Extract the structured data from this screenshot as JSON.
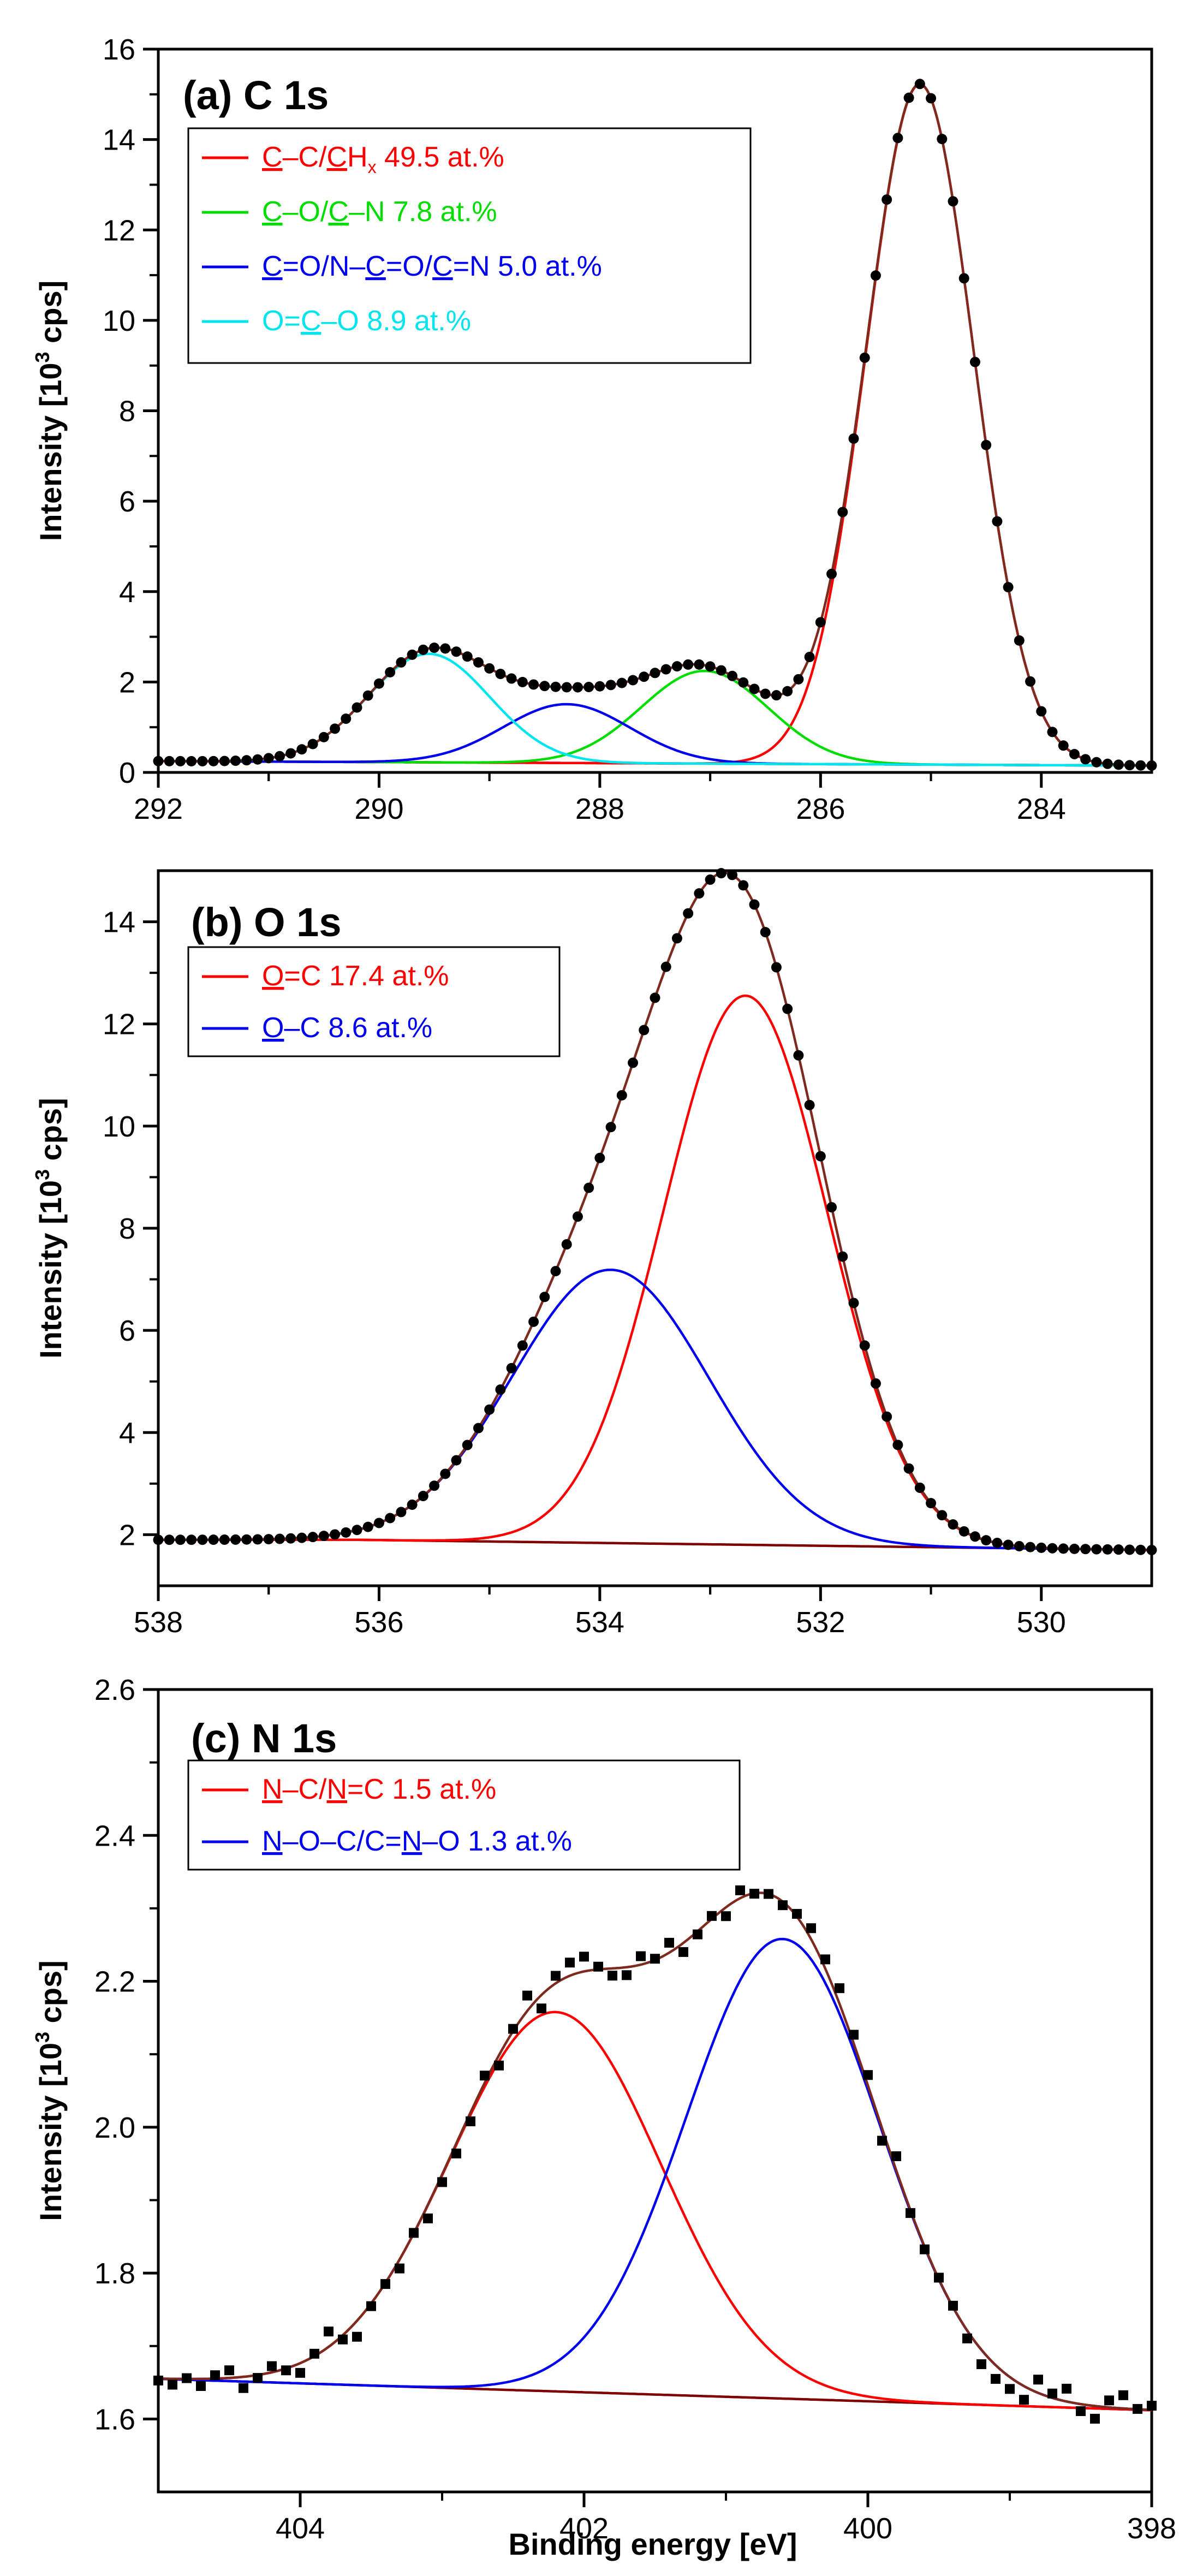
{
  "figure_xlabel": "Binding energy [eV]",
  "colors": {
    "axis": "#000000",
    "envelope": "#7f2a1e",
    "baseline": "#7f0000",
    "points": "#000000",
    "red": "#ff0000",
    "green": "#00dd00",
    "blue": "#0000ee",
    "cyan": "#00e5ee"
  },
  "chart_data": [
    {
      "type": "line",
      "panel": "(a) C 1s",
      "title": "(a) C 1s",
      "ylabel": "Intensity [10³ cps]",
      "ylabel_parts": {
        "pre": "Intensity [10",
        "sup": "3",
        "post": " cps]"
      },
      "xlim": [
        292,
        283
      ],
      "ylim": [
        0,
        16
      ],
      "x_ticks": [
        292,
        290,
        288,
        286,
        284
      ],
      "y_ticks": [
        0,
        2,
        4,
        6,
        8,
        10,
        12,
        14,
        16
      ],
      "baseline": [
        [
          292,
          0.25
        ],
        [
          283,
          0.15
        ]
      ],
      "peaks": [
        {
          "name": "C–C/CHx",
          "center": 285.1,
          "height": 15.05,
          "fwhm": 1.15,
          "color": "#ff0000"
        },
        {
          "name": "C–O/C–N",
          "center": 287.05,
          "height": 2.05,
          "fwhm": 1.35,
          "color": "#00dd00"
        },
        {
          "name": "C=O/N–C=O/C=N",
          "center": 288.3,
          "height": 1.3,
          "fwhm": 1.35,
          "color": "#0000ee"
        },
        {
          "name": "O=C–O",
          "center": 289.55,
          "height": 2.4,
          "fwhm": 1.3,
          "color": "#00e5ee"
        }
      ],
      "data_points": {
        "x_start": 292,
        "x_end": 283,
        "step": 0.1,
        "style": "circle",
        "noise": 0.0
      },
      "legend": [
        {
          "color": "#ff0000",
          "segments": [
            [
              "C",
              true
            ],
            [
              "–C/",
              false
            ],
            [
              "C",
              true
            ],
            [
              "H",
              false
            ],
            [
              "x",
              false,
              "sub"
            ],
            [
              " 49.5 at.%",
              false
            ]
          ]
        },
        {
          "color": "#00dd00",
          "segments": [
            [
              "C",
              true
            ],
            [
              "–O/",
              false
            ],
            [
              "C",
              true
            ],
            [
              "–N 7.8 at.%",
              false
            ]
          ]
        },
        {
          "color": "#0000ee",
          "segments": [
            [
              "C",
              true
            ],
            [
              "=O/N–",
              false
            ],
            [
              "C",
              true
            ],
            [
              "=O/",
              false
            ],
            [
              "C",
              true
            ],
            [
              "=N 5.0 at.%",
              false
            ]
          ]
        },
        {
          "color": "#00e5ee",
          "segments": [
            [
              "O=",
              false
            ],
            [
              "C",
              true
            ],
            [
              "–O 8.9 at.%",
              false
            ]
          ]
        }
      ],
      "legend_placement": "top-left"
    },
    {
      "type": "line",
      "panel": "(b) O 1s",
      "title": "(b) O 1s",
      "ylabel": "Intensity [10³ cps]",
      "ylabel_parts": {
        "pre": "Intensity [10",
        "sup": "3",
        "post": " cps]"
      },
      "xlim": [
        538,
        529
      ],
      "ylim": [
        1.0,
        15.0
      ],
      "x_ticks": [
        538,
        536,
        534,
        532,
        530
      ],
      "y_ticks": [
        2,
        4,
        6,
        8,
        10,
        12,
        14
      ],
      "baseline": [
        [
          538,
          1.9
        ],
        [
          536.2,
          1.9
        ],
        [
          529,
          1.7
        ]
      ],
      "peaks": [
        {
          "name": "O=C",
          "center": 532.68,
          "height": 10.75,
          "fwhm": 1.75,
          "color": "#ff0000"
        },
        {
          "name": "O–C",
          "center": 533.9,
          "height": 5.35,
          "fwhm": 2.1,
          "color": "#0000ee"
        }
      ],
      "data_points": {
        "x_start": 538,
        "x_end": 529,
        "step": 0.1,
        "style": "circle",
        "noise": 0.0
      },
      "legend": [
        {
          "color": "#ff0000",
          "segments": [
            [
              "O",
              true
            ],
            [
              "=C 17.4 at.%",
              false
            ]
          ]
        },
        {
          "color": "#0000ee",
          "segments": [
            [
              "O",
              true
            ],
            [
              "–C 8.6 at.%",
              false
            ]
          ]
        }
      ],
      "legend_placement": "top-left"
    },
    {
      "type": "line",
      "panel": "(c) N 1s",
      "title": "(c) N 1s",
      "ylabel": "Intensity [10³ cps]",
      "ylabel_parts": {
        "pre": "Intensity [10",
        "sup": "3",
        "post": " cps]"
      },
      "xlim": [
        405,
        398
      ],
      "ylim": [
        1.5,
        2.6
      ],
      "x_ticks": [
        404,
        402,
        400,
        398
      ],
      "y_ticks": [
        1.6,
        1.8,
        2.0,
        2.2,
        2.4,
        2.6
      ],
      "baseline": [
        [
          405,
          1.655
        ],
        [
          398,
          1.612
        ]
      ],
      "peaks": [
        {
          "name": "N–C/N=C",
          "center": 402.2,
          "height": 0.52,
          "fwhm": 1.75,
          "color": "#ff0000"
        },
        {
          "name": "N–O–C/C=N–O",
          "center": 400.6,
          "height": 0.63,
          "fwhm": 1.6,
          "color": "#0000ee"
        }
      ],
      "data_points": {
        "x_start": 405,
        "x_end": 398,
        "step": 0.1,
        "style": "square",
        "noise": 0.022
      },
      "legend": [
        {
          "color": "#ff0000",
          "segments": [
            [
              "N",
              true
            ],
            [
              "–C/",
              false
            ],
            [
              "N",
              true
            ],
            [
              "=C 1.5 at.%",
              false
            ]
          ]
        },
        {
          "color": "#0000ee",
          "segments": [
            [
              "N",
              true
            ],
            [
              "–O–C/C=",
              false
            ],
            [
              "N",
              true
            ],
            [
              "–O 1.3 at.%",
              false
            ]
          ]
        }
      ],
      "legend_placement": "top-left"
    }
  ]
}
